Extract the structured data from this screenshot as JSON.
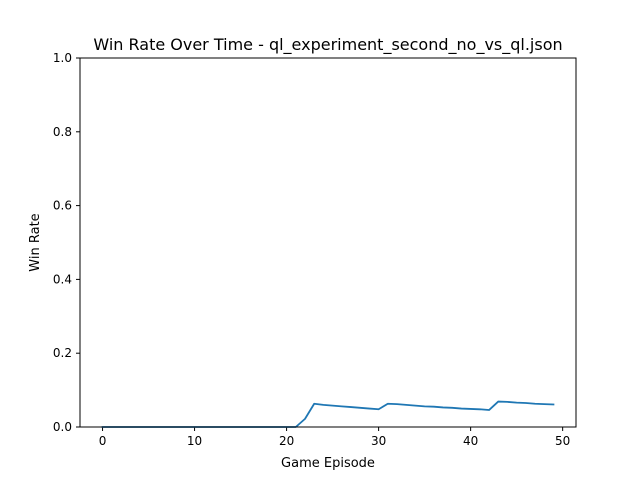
{
  "chart_data": {
    "type": "line",
    "title": "Win Rate Over Time - ql_experiment_second_no_vs_ql.json",
    "xlabel": "Game Episode",
    "ylabel": "Win Rate",
    "xlim": [
      -2.45,
      51.45
    ],
    "ylim": [
      0,
      1
    ],
    "xticks": [
      0,
      10,
      20,
      30,
      40,
      50
    ],
    "yticks": [
      0.0,
      0.2,
      0.4,
      0.6,
      0.8,
      1.0
    ],
    "xtick_labels": [
      "0",
      "10",
      "20",
      "30",
      "40",
      "50"
    ],
    "ytick_labels": [
      "0.0",
      "0.2",
      "0.4",
      "0.6",
      "0.8",
      "1.0"
    ],
    "grid": false,
    "series": [
      {
        "color": "#1f77b4",
        "x": [
          0,
          1,
          2,
          3,
          4,
          5,
          6,
          7,
          8,
          9,
          10,
          11,
          12,
          13,
          14,
          15,
          16,
          17,
          18,
          19,
          20,
          21,
          22,
          23,
          24,
          25,
          26,
          27,
          28,
          29,
          30,
          31,
          32,
          33,
          34,
          35,
          36,
          37,
          38,
          39,
          40,
          41,
          42,
          43,
          44,
          45,
          46,
          47,
          48,
          49
        ],
        "values": [
          0,
          0,
          0,
          0,
          0,
          0,
          0,
          0,
          0,
          0,
          0,
          0,
          0,
          0,
          0,
          0,
          0,
          0,
          0,
          0,
          0,
          0,
          0.022,
          0.063,
          0.06,
          0.058,
          0.056,
          0.054,
          0.052,
          0.05,
          0.048,
          0.063,
          0.062,
          0.06,
          0.058,
          0.056,
          0.055,
          0.053,
          0.052,
          0.05,
          0.049,
          0.048,
          0.046,
          0.069,
          0.068,
          0.066,
          0.065,
          0.063,
          0.062,
          0.061
        ]
      }
    ]
  }
}
